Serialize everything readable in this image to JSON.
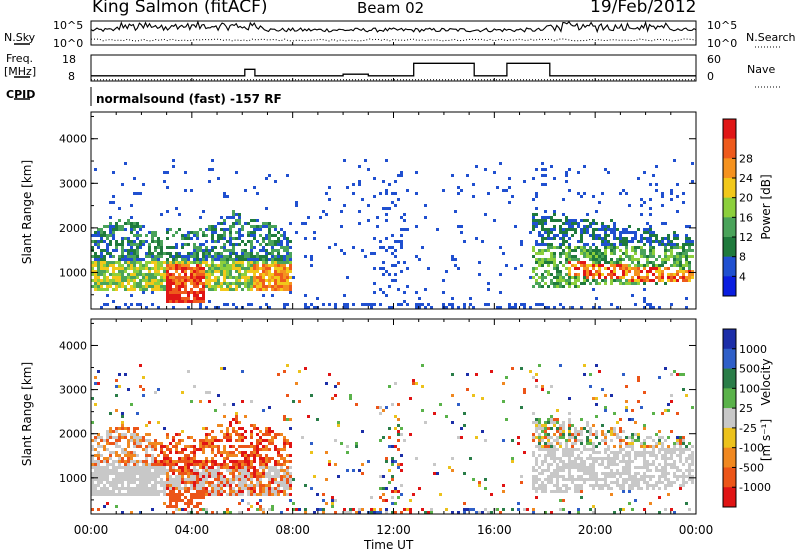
{
  "header": {
    "station": "King Salmon (fitACF)",
    "beam": "Beam 02",
    "date": "19/Feb/2012"
  },
  "summary_panels": {
    "nsky_label": "N.Sky",
    "nsearch_label": "N.Search",
    "nsky_ticks": [
      "10^5",
      "10^0"
    ],
    "freq_label_top": "Freq.",
    "freq_label_bottom": "[MHz]",
    "freq_ticks": [
      "18",
      "8"
    ],
    "nave_label": "Nave",
    "nave_ticks": [
      "60",
      "0"
    ],
    "cpid_label": "CPID",
    "cpid_text": "normalsound (fast) -157 RF"
  },
  "colors": {
    "power_scale": [
      "#0a1ee0",
      "#2050d0",
      "#1f7a3c",
      "#4aa35a",
      "#8ccf3c",
      "#f2c81a",
      "#f5921f",
      "#ee5a1c",
      "#e01616"
    ],
    "velocity_scale": [
      "#1c2ea8",
      "#2f5fc8",
      "#2a7d48",
      "#5ab24a",
      "#c8c8c8",
      "#ecc21c",
      "#f08820",
      "#ec5518",
      "#e01414"
    ]
  },
  "chart_data": [
    {
      "type": "line",
      "title": "",
      "series": [
        {
          "name": "N.Sky",
          "style": "solid"
        },
        {
          "name": "N.Search",
          "style": "dotted"
        }
      ],
      "x": [
        "00:00",
        "04:00",
        "08:00",
        "12:00",
        "16:00",
        "20:00",
        "00:00"
      ],
      "ylim_labels": [
        "10^0",
        "10^5"
      ]
    },
    {
      "type": "line",
      "series_name": "Freq.",
      "ylabel": "[MHz]",
      "ylim": [
        8,
        18
      ],
      "segments": [
        {
          "start_h": 0.0,
          "end_h": 6.1,
          "value": 10.0
        },
        {
          "start_h": 6.1,
          "end_h": 6.5,
          "value": 12.5
        },
        {
          "start_h": 6.5,
          "end_h": 10.0,
          "value": 10.0
        },
        {
          "start_h": 10.0,
          "end_h": 11.0,
          "value": 10.6
        },
        {
          "start_h": 11.0,
          "end_h": 12.8,
          "value": 10.0
        },
        {
          "start_h": 12.8,
          "end_h": 15.2,
          "value": 14.8
        },
        {
          "start_h": 15.2,
          "end_h": 16.5,
          "value": 10.0
        },
        {
          "start_h": 16.5,
          "end_h": 18.2,
          "value": 14.8
        },
        {
          "start_h": 18.2,
          "end_h": 24.0,
          "value": 10.0
        }
      ],
      "y2_label": "Nave",
      "y2lim": [
        0,
        60
      ],
      "nave_level": 3
    },
    {
      "type": "heatmap",
      "title": "",
      "xlabel": "",
      "ylabel": "Slant Range [km]",
      "yticks": [
        1000,
        2000,
        3000,
        4000
      ],
      "ylim": [
        180,
        4600
      ],
      "x_ticks": [
        "00:00",
        "04:00",
        "08:00",
        "12:00",
        "16:00",
        "20:00",
        "00:00"
      ],
      "xlim_hours": [
        0,
        24
      ],
      "colorbar_label": "Power [dB]",
      "colorbar_ticks": [
        "4",
        "8",
        "12",
        "16",
        "20",
        "24",
        "28"
      ],
      "colorbar_range": [
        0,
        30
      ],
      "regions": [
        {
          "t0": 0.0,
          "t1": 8.0,
          "r0": 700,
          "r1": 2200,
          "level": "medium"
        },
        {
          "t0": 3.0,
          "t1": 4.5,
          "r0": 300,
          "r1": 1200,
          "level": "high"
        },
        {
          "t0": 17.5,
          "t1": 24.0,
          "r0": 700,
          "r1": 1900,
          "level": "medium"
        },
        {
          "t0": 20.5,
          "t1": 24.0,
          "r0": 800,
          "r1": 1100,
          "level": "high"
        },
        {
          "t0": 0.0,
          "t1": 24.0,
          "r0": 180,
          "r1": 4000,
          "level": "sparse"
        }
      ]
    },
    {
      "type": "heatmap",
      "title": "",
      "xlabel": "Time UT",
      "ylabel": "Slant Range [km]",
      "yticks": [
        1000,
        2000,
        3000,
        4000
      ],
      "ylim": [
        180,
        4600
      ],
      "x_ticks": [
        "00:00",
        "04:00",
        "08:00",
        "12:00",
        "16:00",
        "20:00",
        "00:00"
      ],
      "xlim_hours": [
        0,
        24
      ],
      "colorbar_label": "Velocity",
      "colorbar_unit": "[m s⁻¹]",
      "colorbar_ticks": [
        "1000",
        "500",
        "100",
        "25",
        "-25",
        "-100",
        "-500",
        "-1000"
      ],
      "regions": [
        {
          "t0": 0.0,
          "t1": 8.0,
          "r0": 700,
          "r1": 1300,
          "level": "ground"
        },
        {
          "t0": 2.5,
          "t1": 8.0,
          "r0": 500,
          "r1": 2100,
          "level": "negative"
        },
        {
          "t0": 17.5,
          "t1": 24.0,
          "r0": 700,
          "r1": 1700,
          "level": "ground"
        },
        {
          "t0": 17.5,
          "t1": 24.0,
          "r0": 1700,
          "r1": 2700,
          "level": "mixed"
        },
        {
          "t0": 0.0,
          "t1": 24.0,
          "r0": 180,
          "r1": 4000,
          "level": "sparse"
        }
      ]
    }
  ]
}
